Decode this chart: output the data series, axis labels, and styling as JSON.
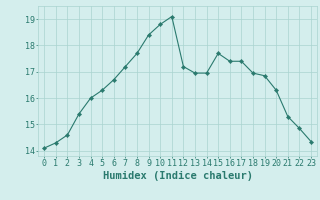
{
  "x": [
    0,
    1,
    2,
    3,
    4,
    5,
    6,
    7,
    8,
    9,
    10,
    11,
    12,
    13,
    14,
    15,
    16,
    17,
    18,
    19,
    20,
    21,
    22,
    23
  ],
  "y": [
    14.1,
    14.3,
    14.6,
    15.4,
    16.0,
    16.3,
    16.7,
    17.2,
    17.7,
    18.4,
    18.8,
    19.1,
    17.2,
    16.95,
    16.95,
    17.7,
    17.4,
    17.4,
    16.95,
    16.85,
    16.3,
    15.3,
    14.85,
    14.35
  ],
  "line_color": "#2a7a6e",
  "marker": "D",
  "marker_size": 2.2,
  "bg_color": "#d4eeed",
  "grid_color": "#aad4d0",
  "tick_label_color": "#2a7a6e",
  "xlabel": "Humidex (Indice chaleur)",
  "xlabel_color": "#2a7a6e",
  "xlabel_fontsize": 7.5,
  "ylim": [
    13.8,
    19.5
  ],
  "xlim": [
    -0.5,
    23.5
  ],
  "yticks": [
    14,
    15,
    16,
    17,
    18,
    19
  ],
  "xticks": [
    0,
    1,
    2,
    3,
    4,
    5,
    6,
    7,
    8,
    9,
    10,
    11,
    12,
    13,
    14,
    15,
    16,
    17,
    18,
    19,
    20,
    21,
    22,
    23
  ],
  "tick_fontsize": 6.0,
  "figsize": [
    3.2,
    2.0
  ],
  "dpi": 100
}
